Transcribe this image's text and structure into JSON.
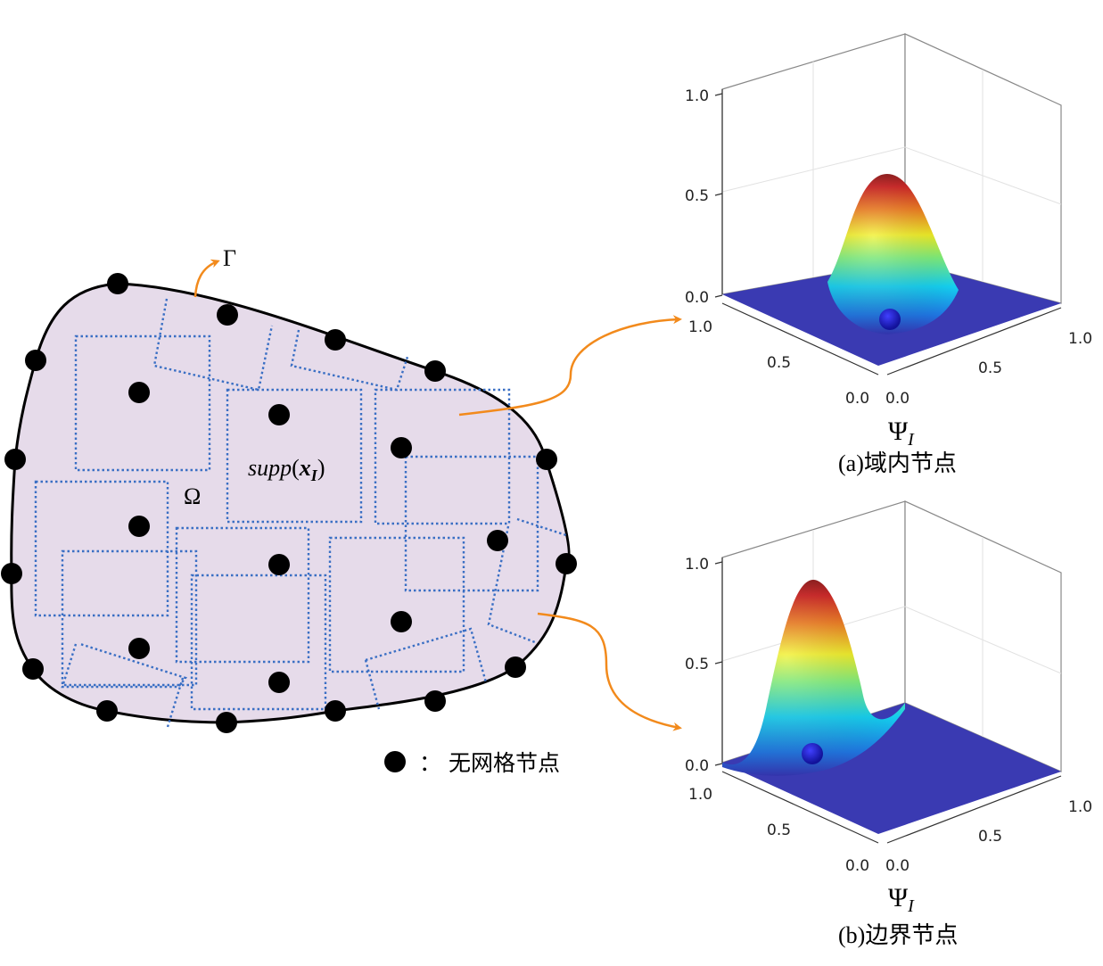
{
  "domain": {
    "boundary_symbol": "Γ",
    "domain_symbol": "Ω",
    "support_label_prefix": "supp(",
    "support_label_var": "x",
    "support_label_sub": "I",
    "support_label_suffix": ")"
  },
  "legend": {
    "marker_text": "：  无网格节点"
  },
  "plots": [
    {
      "caption": "(a)域内节点",
      "z_ticks": [
        "1.0",
        "0.5",
        "0.0"
      ],
      "left_ticks": [
        "1.0",
        "0.5",
        "0.0"
      ],
      "right_ticks": [
        "0.0",
        "0.5",
        "1.0"
      ],
      "function_symbol": "Ψ",
      "function_sub": "I"
    },
    {
      "caption": "(b)边界节点",
      "z_ticks": [
        "1.0",
        "0.5",
        "0.0"
      ],
      "left_ticks": [
        "1.0",
        "0.5",
        "0.0"
      ],
      "right_ticks": [
        "0.0",
        "0.5",
        "1.0"
      ],
      "function_symbol": "Ψ",
      "function_sub": "I"
    }
  ],
  "colors": {
    "domain_fill": "#e6dbea",
    "support_border": "#3a6fc4",
    "arrow": "#f28a1c",
    "node": "#000000",
    "surface_base": "#3a3ab2"
  }
}
